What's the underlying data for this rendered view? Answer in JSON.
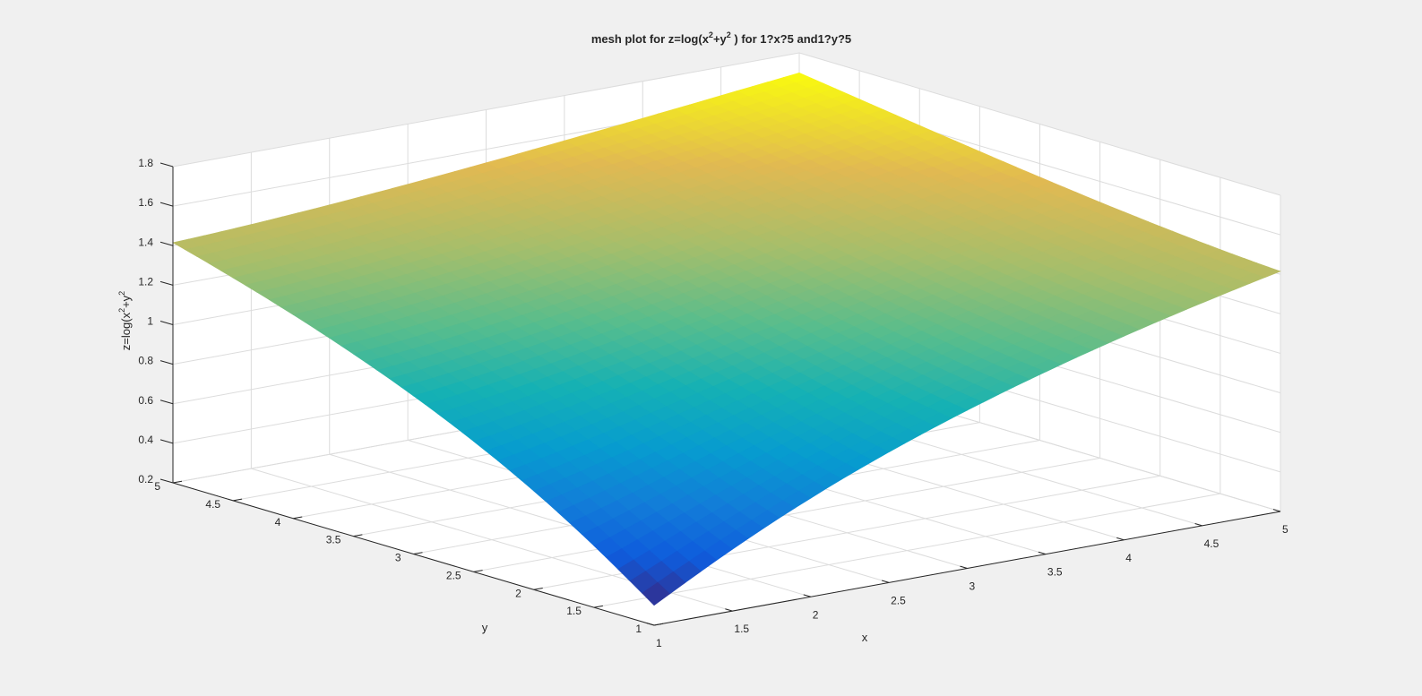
{
  "chart_data": {
    "type": "mesh",
    "function": "z=log10(x^2+y^2)",
    "title": {
      "prefix": "mesh plot for  z=log(x",
      "sup1": "2",
      "mid": "+y",
      "sup2": "2",
      "suffix": " )  for 1?x?5 and1?y?5"
    },
    "xlabel": "x",
    "ylabel": "y",
    "zlabel": {
      "prefix": "z=log(x",
      "sup1": "2",
      "mid": "+y",
      "sup2": "2"
    },
    "xlim": [
      1,
      5
    ],
    "ylim": [
      1,
      5
    ],
    "zlim": [
      0.2,
      1.8
    ],
    "x_ticks": [
      "1",
      "1.5",
      "2",
      "2.5",
      "3",
      "3.5",
      "4",
      "4.5",
      "5"
    ],
    "y_ticks": [
      "1",
      "1.5",
      "2",
      "2.5",
      "3",
      "3.5",
      "4",
      "4.5",
      "5"
    ],
    "z_ticks": [
      "0.2",
      "0.4",
      "0.6",
      "0.8",
      "1",
      "1.2",
      "1.4",
      "1.6",
      "1.8"
    ],
    "grid": true,
    "colormap": "parula",
    "corner_values": [
      {
        "x": 1,
        "y": 1,
        "z": 0.301
      },
      {
        "x": 5,
        "y": 1,
        "z": 1.415
      },
      {
        "x": 1,
        "y": 5,
        "z": 1.415
      },
      {
        "x": 5,
        "y": 5,
        "z": 1.699
      }
    ]
  },
  "colors": {
    "background": "#f0f0f0",
    "axes_background": "#ffffff",
    "grid": "#dcdcdc",
    "axis_line": "#262626"
  }
}
